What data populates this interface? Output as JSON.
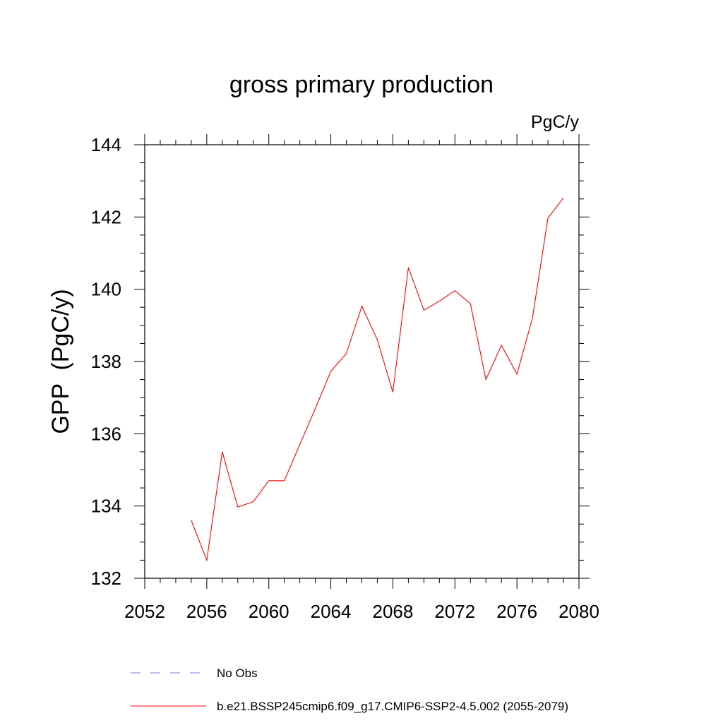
{
  "chart_data": {
    "type": "line",
    "title": "gross primary production",
    "units_label": "PgC/y",
    "ylabel": "GPP  (PgC/y)",
    "xlabel": "",
    "xlim": [
      2052,
      2080
    ],
    "ylim": [
      132,
      144
    ],
    "x_ticks": [
      2052,
      2056,
      2060,
      2064,
      2068,
      2072,
      2076,
      2080
    ],
    "y_ticks": [
      132,
      134,
      136,
      138,
      140,
      142,
      144
    ],
    "x_tick_labels": [
      "2052",
      "2056",
      "2060",
      "2064",
      "2068",
      "2072",
      "2076",
      "2080"
    ],
    "y_tick_labels": [
      "132",
      "134",
      "136",
      "138",
      "140",
      "142",
      "144"
    ],
    "grid": false,
    "legend_position": "bottom",
    "legend": [
      {
        "label": "No Obs",
        "color": "#7b7bd0",
        "dash": "dashed"
      },
      {
        "label": "b.e21.BSSP245cmip6.f09_g17.CMIP6-SSP2-4.5.002 (2055-2079)",
        "color": "#ff0000",
        "dash": "solid"
      }
    ],
    "series": [
      {
        "color": "#ff0000",
        "x": [
          2055,
          2056,
          2057,
          2058,
          2059,
          2060,
          2061,
          2062,
          2063,
          2064,
          2065,
          2066,
          2067,
          2068,
          2069,
          2070,
          2071,
          2072,
          2073,
          2074,
          2075,
          2076,
          2077,
          2078,
          2079
        ],
        "values": [
          133.6,
          132.5,
          135.5,
          133.97,
          134.12,
          134.7,
          134.7,
          135.7,
          136.7,
          137.73,
          138.22,
          139.53,
          138.6,
          137.15,
          140.6,
          139.42,
          139.67,
          139.96,
          139.6,
          137.5,
          138.45,
          137.65,
          139.2,
          141.97,
          142.53
        ]
      }
    ]
  }
}
